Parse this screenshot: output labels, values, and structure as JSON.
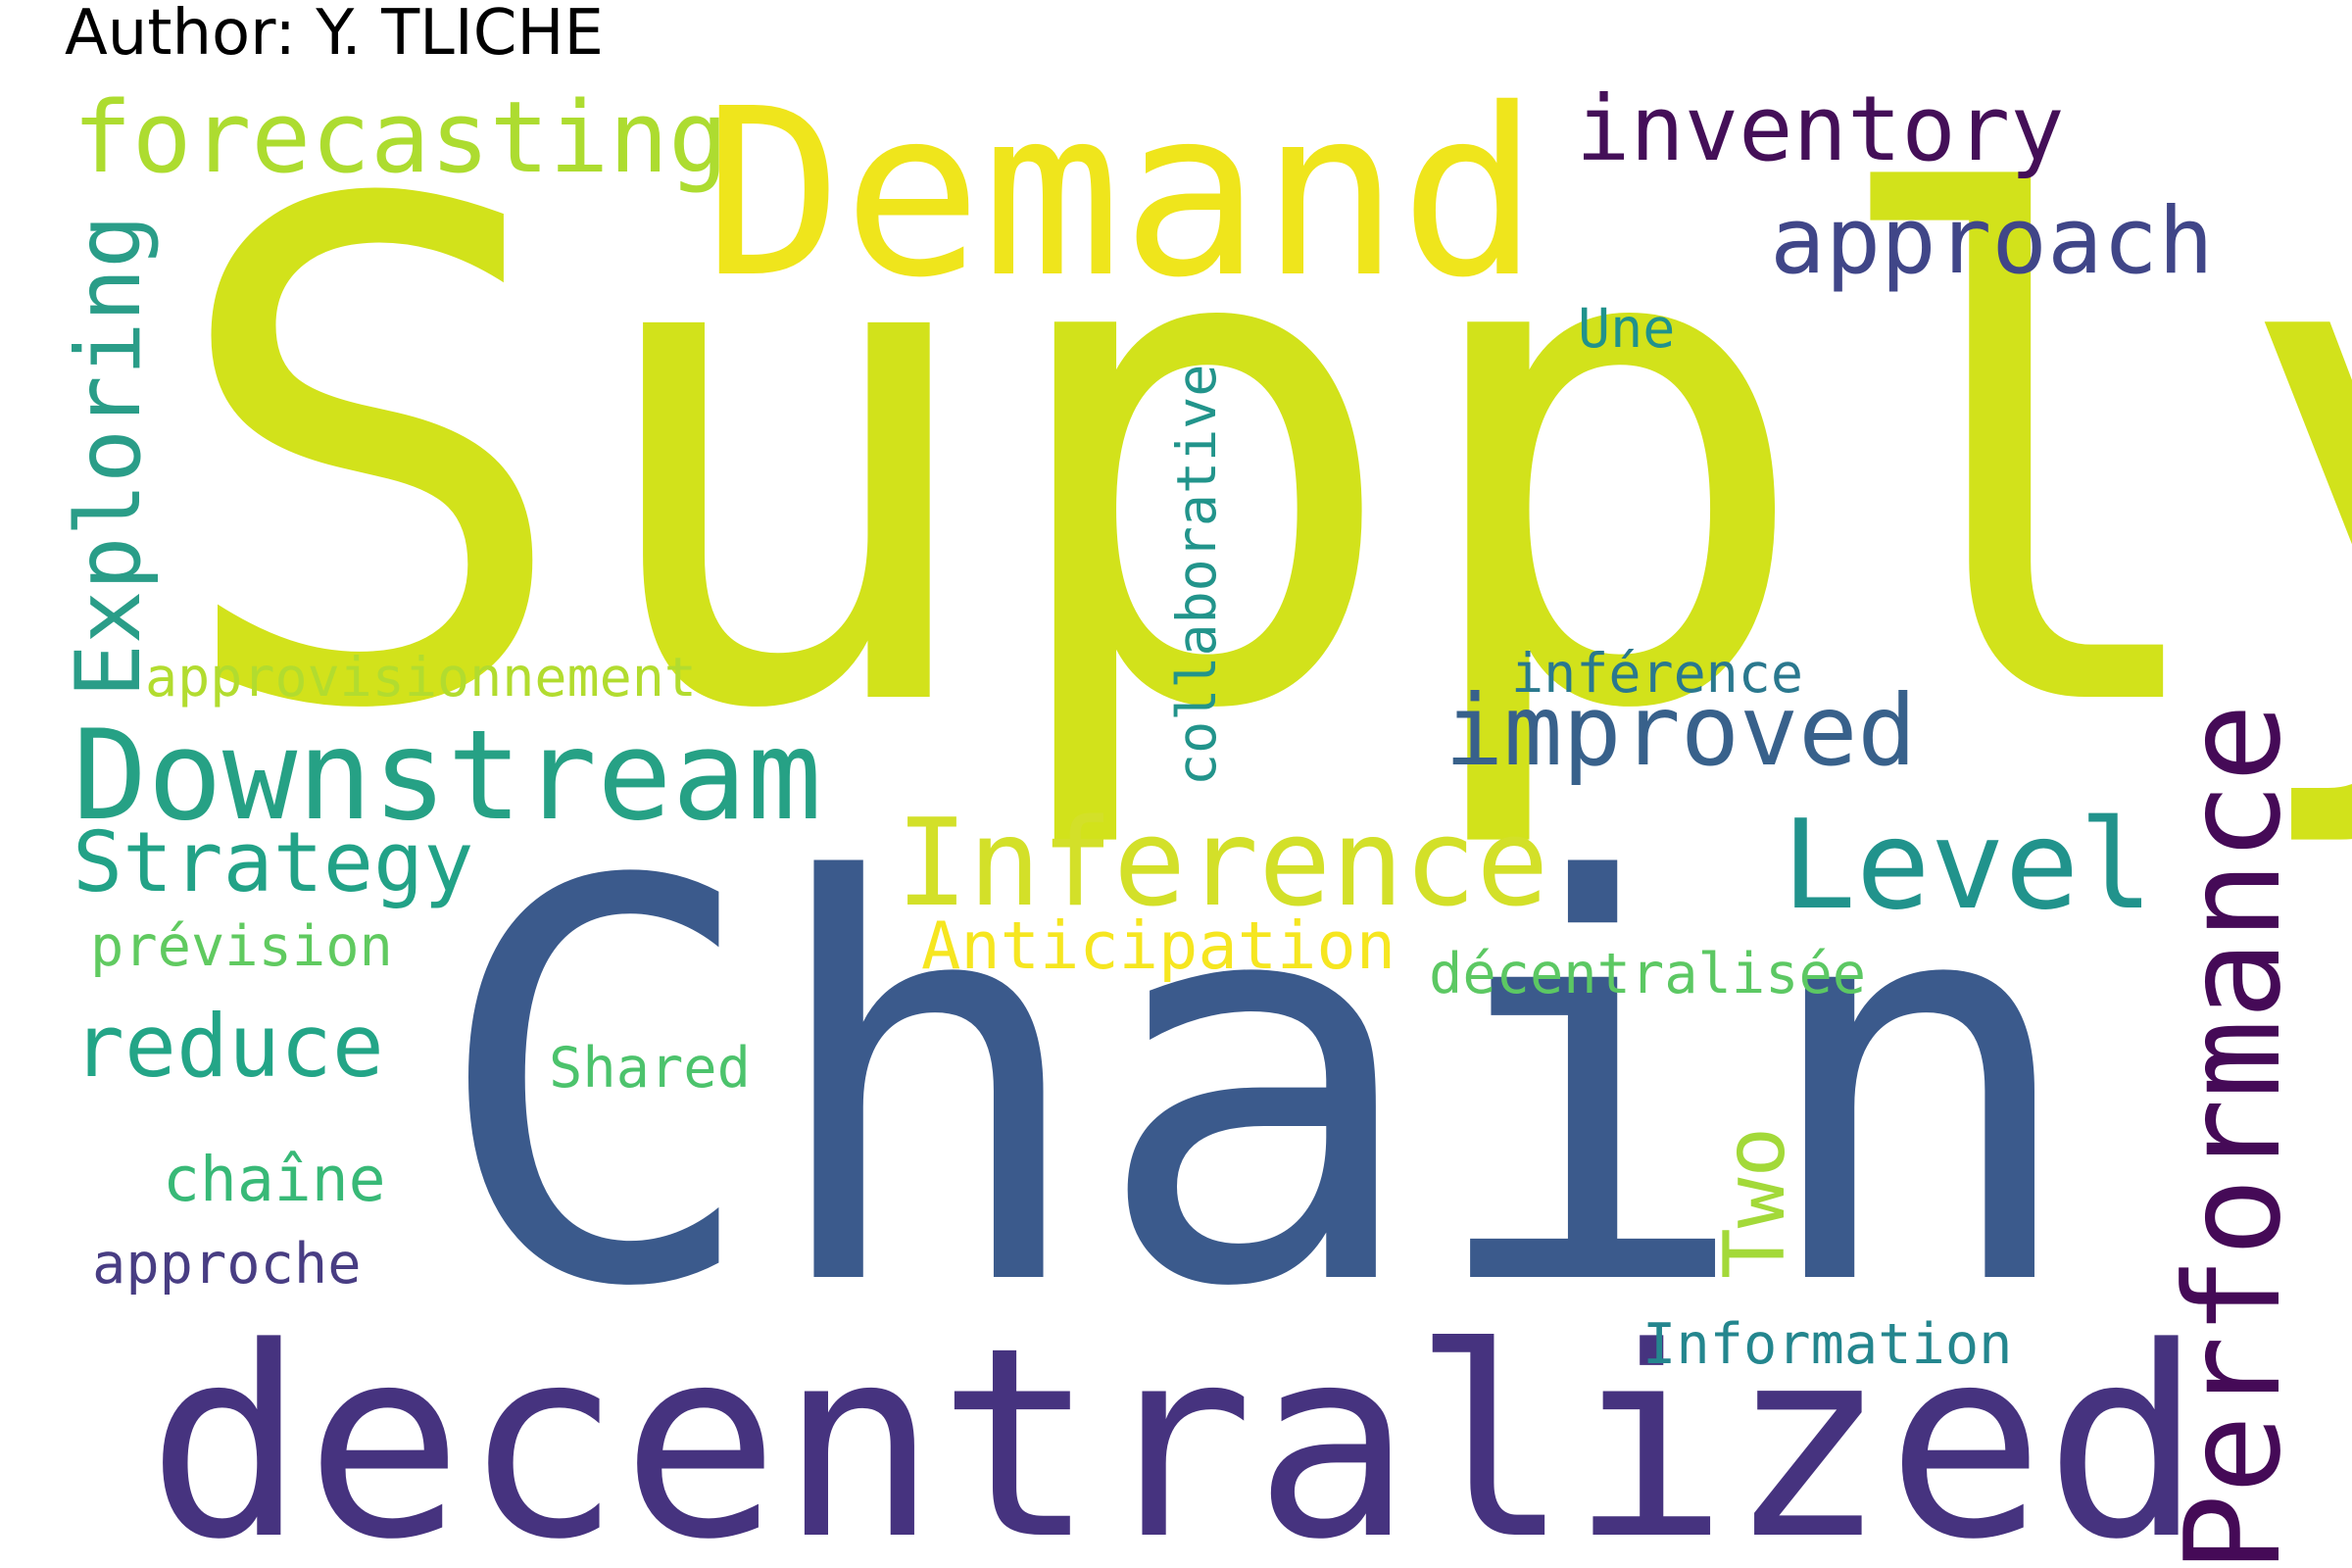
{
  "author": "Author: Y. TLICHE",
  "words": [
    {
      "text": "Supply",
      "color": "#d2e21b"
    },
    {
      "text": "Chain",
      "color": "#3b5a8c"
    },
    {
      "text": "decentralized",
      "color": "#46337f"
    },
    {
      "text": "Demand",
      "color": "#efe51c"
    },
    {
      "text": "Performance",
      "color": "#450a57"
    },
    {
      "text": "Downstream",
      "color": "#26a185"
    },
    {
      "text": "Inference",
      "color": "#d3e029"
    },
    {
      "text": "Level",
      "color": "#21938c"
    },
    {
      "text": "forecasting",
      "color": "#addc30"
    },
    {
      "text": "inventory",
      "color": "#440f58"
    },
    {
      "text": "approach",
      "color": "#404688"
    },
    {
      "text": "improved",
      "color": "#38618b"
    },
    {
      "text": "Exploring",
      "color": "#2a9d88"
    },
    {
      "text": "Strategy",
      "color": "#22a287"
    },
    {
      "text": "reduce",
      "color": "#23a587"
    },
    {
      "text": "collaborative",
      "color": "#22948b"
    },
    {
      "text": "approvisionnement",
      "color": "#b2dc2f"
    },
    {
      "text": "Anticipation",
      "color": "#f6e620"
    },
    {
      "text": "inférence",
      "color": "#2a788e"
    },
    {
      "text": "décentralisée",
      "color": "#5cc863"
    },
    {
      "text": "prévision",
      "color": "#60ca60"
    },
    {
      "text": "Shared",
      "color": "#4cc36c"
    },
    {
      "text": "chaîne",
      "color": "#38b977"
    },
    {
      "text": "approche",
      "color": "#483d83"
    },
    {
      "text": "Two",
      "color": "#a3d939"
    },
    {
      "text": "Information",
      "color": "#24868e"
    },
    {
      "text": "Une",
      "color": "#20928c"
    }
  ]
}
